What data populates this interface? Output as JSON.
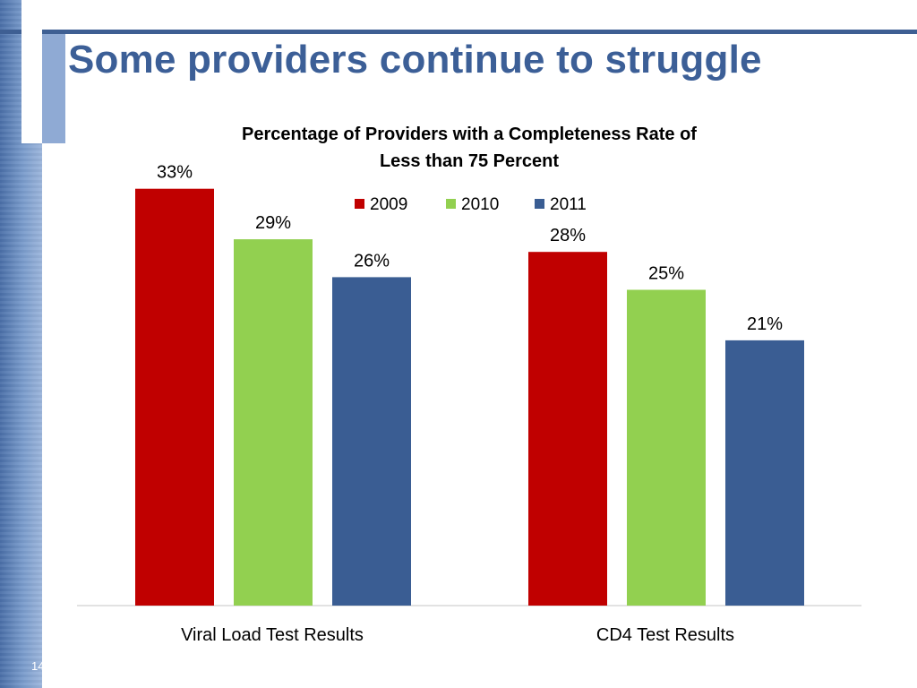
{
  "slide": {
    "title": "Some providers continue to struggle",
    "page_number": "14"
  },
  "colors": {
    "title": "#3c5f97",
    "side_band": "#6f92c6",
    "s2009": "#c00000",
    "s2010": "#92d050",
    "s2011": "#3a5d93"
  },
  "chart_data": {
    "type": "bar",
    "title_lines": [
      "Percentage of Providers with a Completeness Rate of",
      "Less than 75 Percent"
    ],
    "categories": [
      "Viral Load Test Results",
      "CD4 Test Results"
    ],
    "series": [
      {
        "name": "2009",
        "values": [
          33,
          28
        ],
        "labels": [
          "33%",
          "28%"
        ],
        "color": "#c00000"
      },
      {
        "name": "2010",
        "values": [
          29,
          25
        ],
        "labels": [
          "29%",
          "25%"
        ],
        "color": "#92d050"
      },
      {
        "name": "2011",
        "values": [
          26,
          21
        ],
        "labels": [
          "26%",
          "21%"
        ],
        "color": "#3a5d93"
      }
    ],
    "ylim": [
      0,
      35
    ],
    "grid": false,
    "legend_position": "top-center",
    "xlabel": "",
    "ylabel": ""
  }
}
